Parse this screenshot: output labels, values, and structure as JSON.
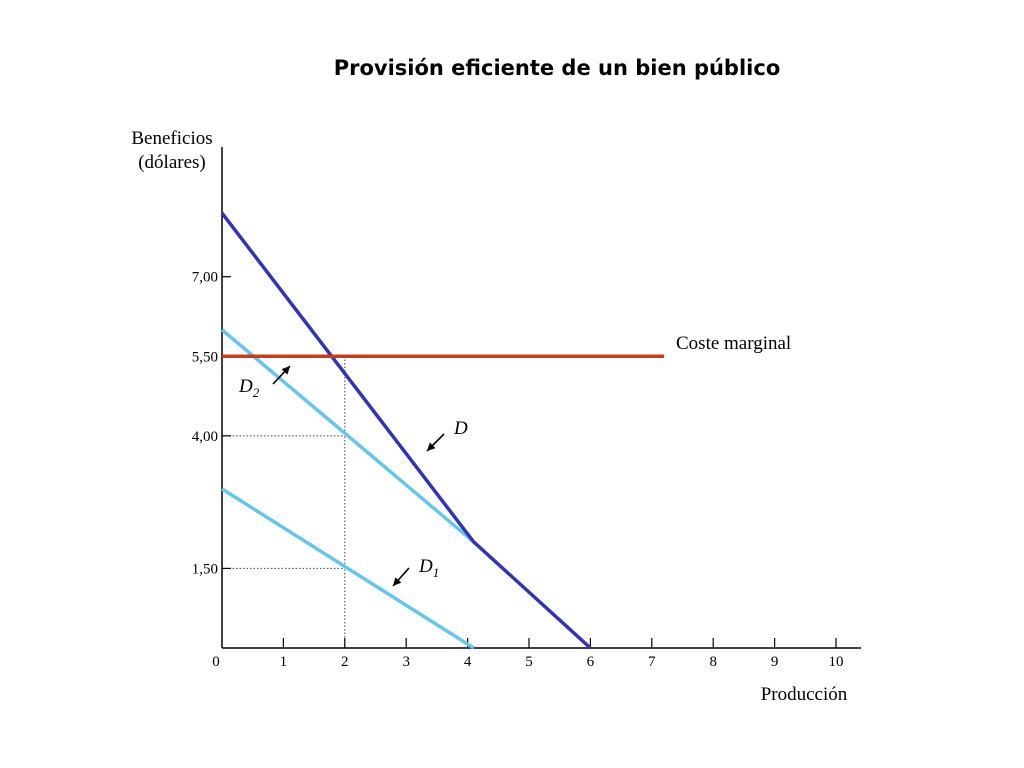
{
  "chart_data": {
    "type": "line",
    "title": "Provisión eficiente de un bien público",
    "ylabel_lines": [
      "Beneficios",
      "(dólares)"
    ],
    "xlabel": "Producción",
    "xlim": [
      0,
      10
    ],
    "ylim": [
      0,
      9.2
    ],
    "x_ticks": [
      0,
      1,
      2,
      3,
      4,
      5,
      6,
      7,
      8,
      9,
      10
    ],
    "x_tick_labels": [
      "0",
      "1",
      "2",
      "3",
      "4",
      "5",
      "6",
      "7",
      "8",
      "9",
      "10"
    ],
    "y_ticks": [
      1.5,
      4.0,
      5.5,
      7.0
    ],
    "y_tick_labels": [
      "1,50",
      "4,00",
      "5,50",
      "7,00"
    ],
    "series": [
      {
        "key": "d1",
        "label": "D",
        "label_sub": "1",
        "color": "#66c5ea",
        "points": [
          [
            0,
            3.0
          ],
          [
            4.1,
            0
          ]
        ]
      },
      {
        "key": "d2",
        "label": "D",
        "label_sub": "2",
        "color": "#66c5ea",
        "points": [
          [
            0,
            6.0
          ],
          [
            4.1,
            2.0
          ]
        ]
      },
      {
        "key": "d",
        "label": "D",
        "label_sub": "",
        "color": "#3333b3",
        "points": [
          [
            0,
            8.2
          ],
          [
            4.1,
            2.0
          ],
          [
            6.0,
            0
          ]
        ]
      },
      {
        "key": "mc",
        "label": "Coste marginal",
        "label_sub": "",
        "color": "#c0401e",
        "points": [
          [
            0,
            5.5
          ],
          [
            7.2,
            5.5
          ]
        ]
      }
    ],
    "reference_lines": [
      {
        "type": "vertical",
        "x": 2,
        "y_to": 5.5
      },
      {
        "type": "horizontal",
        "y": 4.0,
        "x_to": 2
      },
      {
        "type": "horizontal",
        "y": 1.5,
        "x_to": 2
      }
    ],
    "grid": false
  }
}
